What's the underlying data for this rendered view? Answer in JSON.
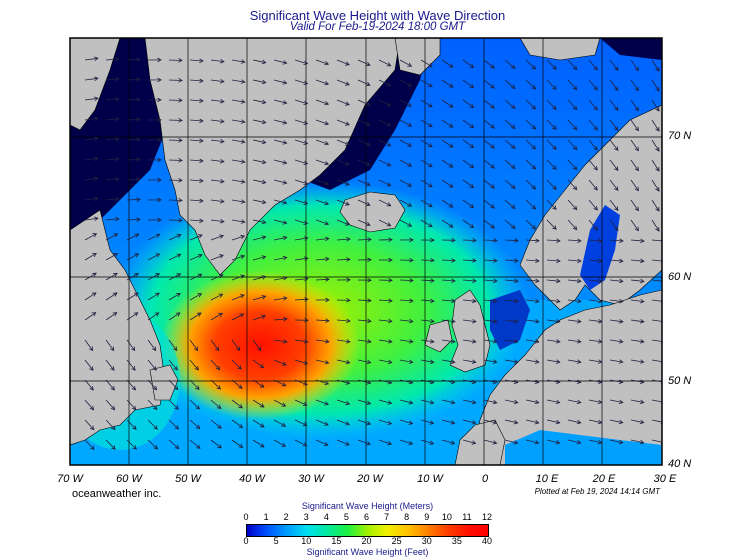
{
  "header": {
    "title": "Significant Wave Height with Wave Direction",
    "subtitle": "Valid For Feb-19-2024 18:00 GMT"
  },
  "map": {
    "region": "North Atlantic",
    "lon_labels": [
      "70 W",
      "60 W",
      "50 W",
      "40 W",
      "30 W",
      "20 W",
      "10 W",
      "0",
      "10 E",
      "20 E",
      "30 E"
    ],
    "lat_labels": [
      "70 N",
      "60 N",
      "50 N",
      "40 N"
    ],
    "colors": {
      "land": "#c0c0c0",
      "ice": "#00004a",
      "low_wave": "#00a0ff",
      "high_wave": "#ff1000"
    }
  },
  "footer": {
    "credit": "oceanweather inc.",
    "plotted": "Plotted at Feb 19, 2024 14:14 GMT"
  },
  "scale": {
    "meters_title": "Significant Wave Height (Meters)",
    "feet_title": "Significant Wave Height (Feet)",
    "meters_ticks": [
      "0",
      "1",
      "2",
      "3",
      "4",
      "5",
      "6",
      "7",
      "8",
      "9",
      "10",
      "11",
      "12"
    ],
    "feet_ticks": [
      "0",
      "5",
      "10",
      "15",
      "20",
      "25",
      "30",
      "35",
      "40"
    ]
  }
}
